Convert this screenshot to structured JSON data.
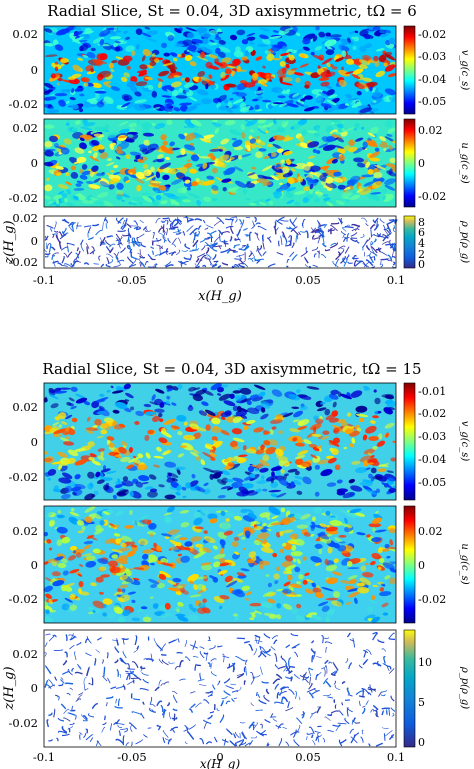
{
  "chart_data": [
    {
      "type": "heatmap",
      "title": "Radial Slice, St = 0.04, 3D axisymmetric, tΩ = 6",
      "xlabel": "x(H_g)",
      "xlim": [
        -0.1,
        0.1
      ],
      "xticks": [
        "-0.1",
        "-0.05",
        "0",
        "0.05",
        "0.1"
      ],
      "panels": [
        {
          "field": "vz",
          "ylim": [
            -0.025,
            0.025
          ],
          "yticks": [
            "0.02",
            "0",
            "-0.02"
          ],
          "colorbar": {
            "label": "v_g(c_s)",
            "range": [
              -0.055,
              -0.015
            ],
            "ticks": [
              "-0.02",
              "-0.03",
              "-0.04",
              "-0.05"
            ],
            "colormap": "jet"
          }
        },
        {
          "field": "uz",
          "ylim": [
            -0.025,
            0.025
          ],
          "yticks": [
            "0.02",
            "0",
            "-0.02"
          ],
          "colorbar": {
            "label": "u_g(c_s)",
            "range": [
              -0.025,
              0.025
            ],
            "ticks": [
              "0.02",
              "0",
              "-0.02"
            ],
            "colormap": "jet"
          }
        },
        {
          "field": "rho",
          "ylabel": "z(H_g)",
          "ylim": [
            -0.025,
            0.025
          ],
          "yticks": [
            "0.02",
            "0",
            "-0.02"
          ],
          "colorbar": {
            "label": "ρ_p(ρ_g)",
            "range": [
              0,
              9.5
            ],
            "ticks": [
              "8",
              "6",
              "4",
              "2",
              "0"
            ],
            "colormap": "parula"
          }
        }
      ]
    },
    {
      "type": "heatmap",
      "title": "Radial Slice, St = 0.04, 3D axisymmetric, tΩ = 15",
      "xlabel": "x(H_g)",
      "xlim": [
        -0.1,
        0.1
      ],
      "xticks": [
        "-0.1",
        "-0.05",
        "0",
        "0.05",
        "0.1"
      ],
      "panels": [
        {
          "field": "vz",
          "ylim": [
            -0.033,
            0.033
          ],
          "yticks": [
            "0.02",
            "0",
            "-0.02"
          ],
          "colorbar": {
            "label": "v_g(c_s)",
            "range": [
              -0.057,
              -0.007
            ],
            "ticks": [
              "-0.01",
              "-0.02",
              "-0.03",
              "-0.04",
              "-0.05"
            ],
            "colormap": "jet"
          }
        },
        {
          "field": "uz",
          "ylim": [
            -0.033,
            0.033
          ],
          "yticks": [
            "0.02",
            "0",
            "-0.02"
          ],
          "colorbar": {
            "label": "u_g(c_s)",
            "range": [
              -0.033,
              0.033
            ],
            "ticks": [
              "0.02",
              "0",
              "-0.02"
            ],
            "colormap": "jet"
          }
        },
        {
          "field": "rho",
          "ylabel": "z(H_g)",
          "ylim": [
            -0.033,
            0.033
          ],
          "yticks": [
            "0.02",
            "0",
            "-0.02"
          ],
          "colorbar": {
            "label": "ρ_p(ρ_g)",
            "range": [
              0,
              14
            ],
            "ticks": [
              "10",
              "5",
              "0"
            ],
            "colormap": "parula"
          }
        }
      ]
    }
  ]
}
